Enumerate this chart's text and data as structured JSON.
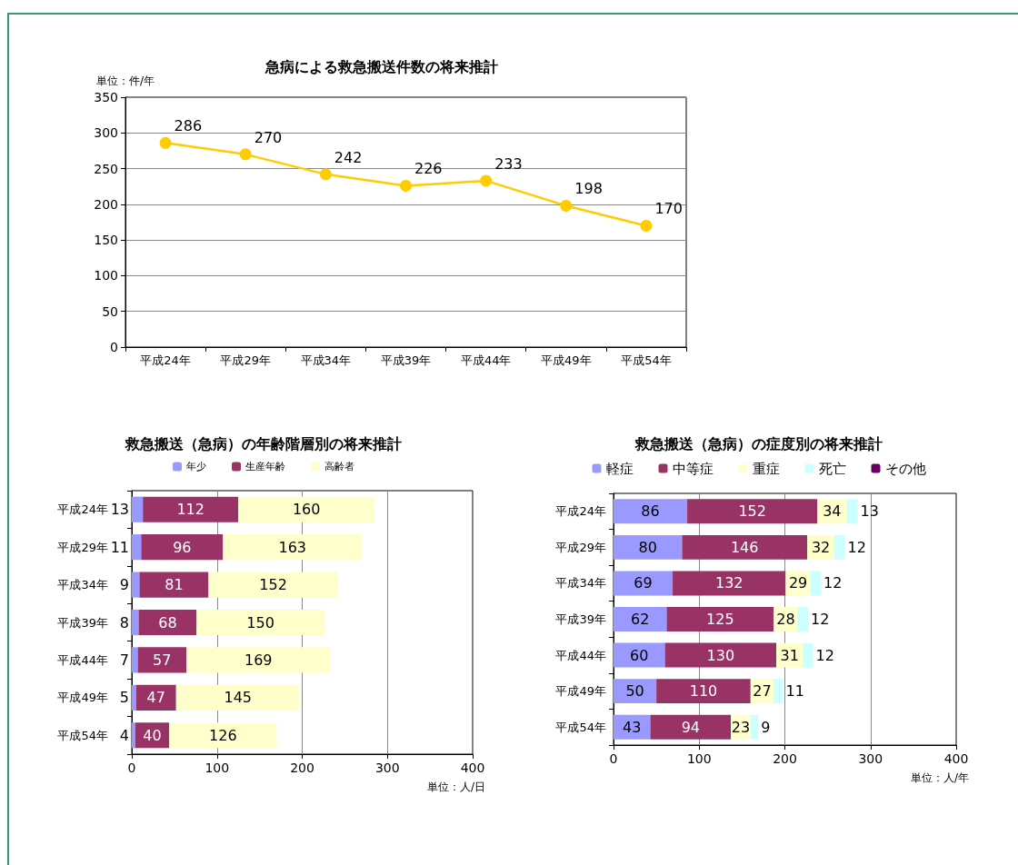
{
  "chart_data": [
    {
      "type": "line",
      "title": "急病による救急搬送件数の将来推計",
      "ylabel": "単位：件/年",
      "categories": [
        "平成24年",
        "平成29年",
        "平成34年",
        "平成39年",
        "平成44年",
        "平成49年",
        "平成54年"
      ],
      "series": [
        {
          "color": "#ffcc00",
          "values": [
            286,
            270,
            242,
            226,
            233,
            198,
            170
          ]
        }
      ],
      "ylim": [
        0,
        350
      ],
      "yticks": [
        0,
        50,
        100,
        150,
        200,
        250,
        300,
        350
      ],
      "grid": "y",
      "marker": "circle",
      "line_style": "solid",
      "data_labels": true,
      "legend": false
    },
    {
      "type": "bar",
      "orientation": "horizontal",
      "stacked": true,
      "title": "救急搬送（急病）の年齢階層別の将来推計",
      "xlabel": "単位：人/日",
      "categories": [
        "平成24年",
        "平成29年",
        "平成34年",
        "平成39年",
        "平成44年",
        "平成49年",
        "平成54年"
      ],
      "series": [
        {
          "name": "年少",
          "color": "#9999ff",
          "values": [
            13,
            11,
            9,
            8,
            7,
            5,
            4
          ]
        },
        {
          "name": "生産年齢",
          "color": "#993366",
          "values": [
            112,
            96,
            81,
            68,
            57,
            47,
            40
          ]
        },
        {
          "name": "高齢者",
          "color": "#ffffcc",
          "values": [
            160,
            163,
            152,
            150,
            169,
            145,
            126
          ]
        }
      ],
      "xlim": [
        0,
        400
      ],
      "xticks": [
        0,
        100,
        200,
        300,
        400
      ],
      "grid": "x",
      "data_labels": true,
      "legend": "top"
    },
    {
      "type": "bar",
      "orientation": "horizontal",
      "stacked": true,
      "title": "救急搬送（急病）の症度別の将来推計",
      "xlabel": "単位：人/年",
      "categories": [
        "平成24年",
        "平成29年",
        "平成34年",
        "平成39年",
        "平成44年",
        "平成49年",
        "平成54年"
      ],
      "series": [
        {
          "name": "軽症",
          "color": "#9999ff",
          "values": [
            86,
            80,
            69,
            62,
            60,
            50,
            43
          ]
        },
        {
          "name": "中等症",
          "color": "#993366",
          "values": [
            152,
            146,
            132,
            125,
            130,
            110,
            94
          ]
        },
        {
          "name": "重症",
          "color": "#ffffcc",
          "values": [
            34,
            32,
            29,
            28,
            31,
            27,
            23
          ]
        },
        {
          "name": "死亡",
          "color": "#ccffff",
          "values": [
            13,
            12,
            12,
            12,
            12,
            11,
            9
          ]
        },
        {
          "name": "その他",
          "color": "#660066",
          "values": [
            null,
            null,
            null,
            null,
            null,
            null,
            null
          ]
        }
      ],
      "xlim": [
        0,
        400
      ],
      "xticks": [
        0,
        100,
        200,
        300,
        400
      ],
      "grid": "x",
      "data_labels": true,
      "legend": "top"
    }
  ]
}
